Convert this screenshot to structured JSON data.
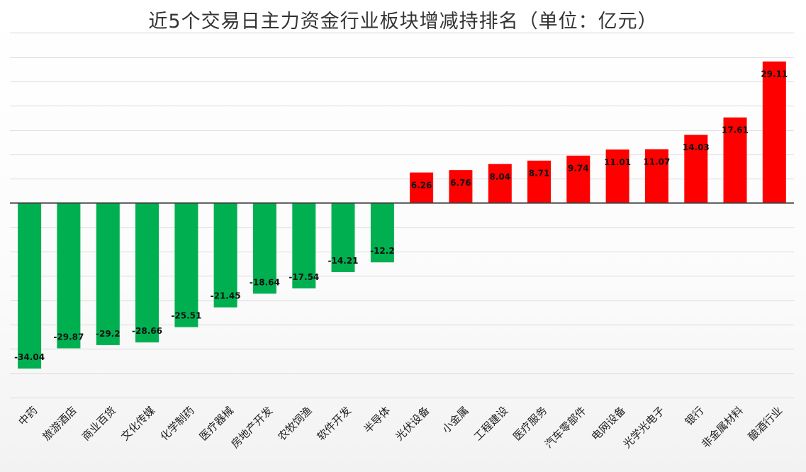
{
  "chart_data": {
    "type": "bar",
    "title": "近5个交易日主力资金行业板块增减持排名（单位：亿元）",
    "xlabel": "",
    "ylabel": "",
    "ylim": [
      -40,
      40
    ],
    "grid": true,
    "legend": "none",
    "categories": [
      "中药",
      "旅游酒店",
      "商业百货",
      "文化传媒",
      "化学制药",
      "医疗器械",
      "房地产开发",
      "农牧饲渔",
      "软件开发",
      "半导体",
      "光伏设备",
      "小金属",
      "工程建设",
      "医疗服务",
      "汽车零部件",
      "电网设备",
      "光学光电子",
      "银行",
      "非金属材料",
      "酿酒行业"
    ],
    "values": [
      -34.04,
      -29.87,
      -29.2,
      -28.66,
      -25.51,
      -21.45,
      -18.64,
      -17.54,
      -14.21,
      -12.2,
      6.26,
      6.76,
      8.04,
      8.71,
      9.74,
      11.01,
      11.07,
      14.03,
      17.61,
      29.11
    ],
    "value_labels": [
      "-34.04",
      "-29.87",
      "-29.2",
      "-28.66",
      "-25.51",
      "-21.45",
      "-18.64",
      "-17.54",
      "-14.21",
      "-12.2",
      "6.26",
      "6.76",
      "8.04",
      "8.71",
      "9.74",
      "11.01",
      "11.07",
      "14.03",
      "17.61",
      "29.11"
    ],
    "colors": {
      "positive": "#ff0000",
      "negative": "#00b050"
    }
  }
}
